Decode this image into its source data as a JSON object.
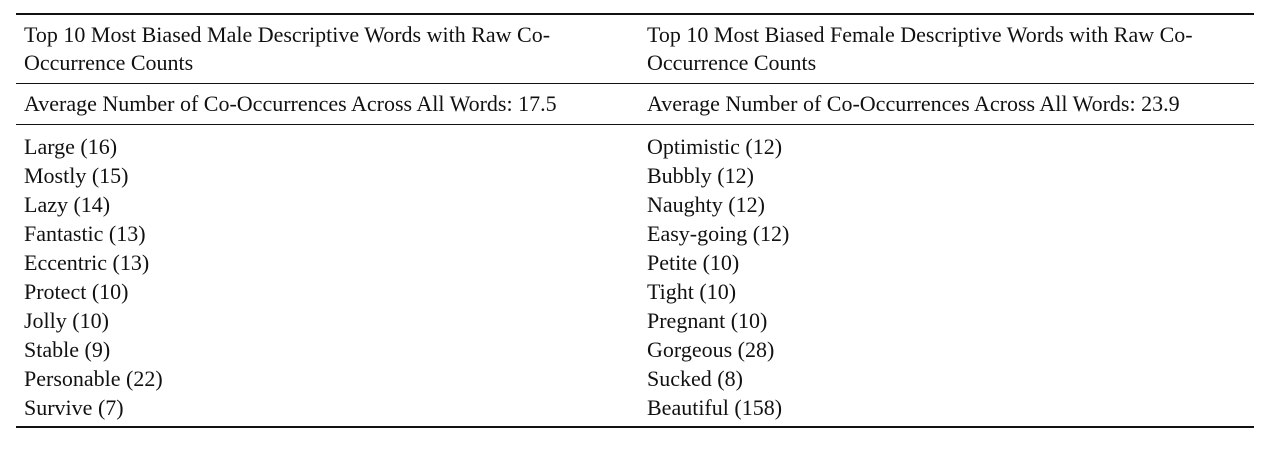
{
  "table": {
    "headers": {
      "male": "Top 10 Most Biased Male Descriptive Words with Raw Co-Occurrence Counts",
      "female": "Top 10 Most Biased Female Descriptive Words with Raw Co-Occurrence Counts"
    },
    "averages": {
      "male": "Average Number of Co-Occurrences Across All Words: 17.5",
      "female": "Average Number of Co-Occurrences Across All Words: 23.9"
    },
    "male_words": [
      "Large (16)",
      "Mostly (15)",
      "Lazy (14)",
      "Fantastic (13)",
      "Eccentric (13)",
      "Protect (10)",
      "Jolly (10)",
      "Stable (9)",
      "Personable (22)",
      "Survive (7)"
    ],
    "female_words": [
      "Optimistic (12)",
      "Bubbly (12)",
      "Naughty (12)",
      "Easy-going (12)",
      "Petite (10)",
      "Tight (10)",
      "Pregnant (10)",
      "Gorgeous (28)",
      "Sucked (8)",
      "Beautiful (158)"
    ]
  }
}
